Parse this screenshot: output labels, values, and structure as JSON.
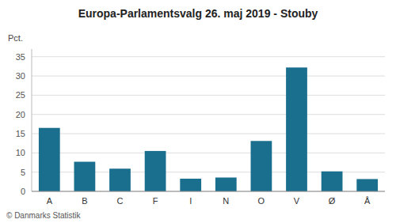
{
  "chart_data": {
    "type": "bar",
    "title": "Europa-Parlamentsvalg 26. maj 2019 - Stouby",
    "ylabel": "Pct.",
    "footer": "© Danmarks Statistik",
    "categories": [
      "A",
      "B",
      "C",
      "F",
      "I",
      "N",
      "O",
      "V",
      "Ø",
      "Å"
    ],
    "values": [
      16.5,
      7.7,
      5.9,
      10.5,
      3.3,
      3.6,
      13.1,
      32.2,
      5.2,
      3.2
    ],
    "color": "#1a6e8e",
    "ylim": [
      0,
      37
    ],
    "yticks": [
      0,
      5,
      10,
      15,
      20,
      25,
      30,
      35
    ],
    "grid": true
  }
}
